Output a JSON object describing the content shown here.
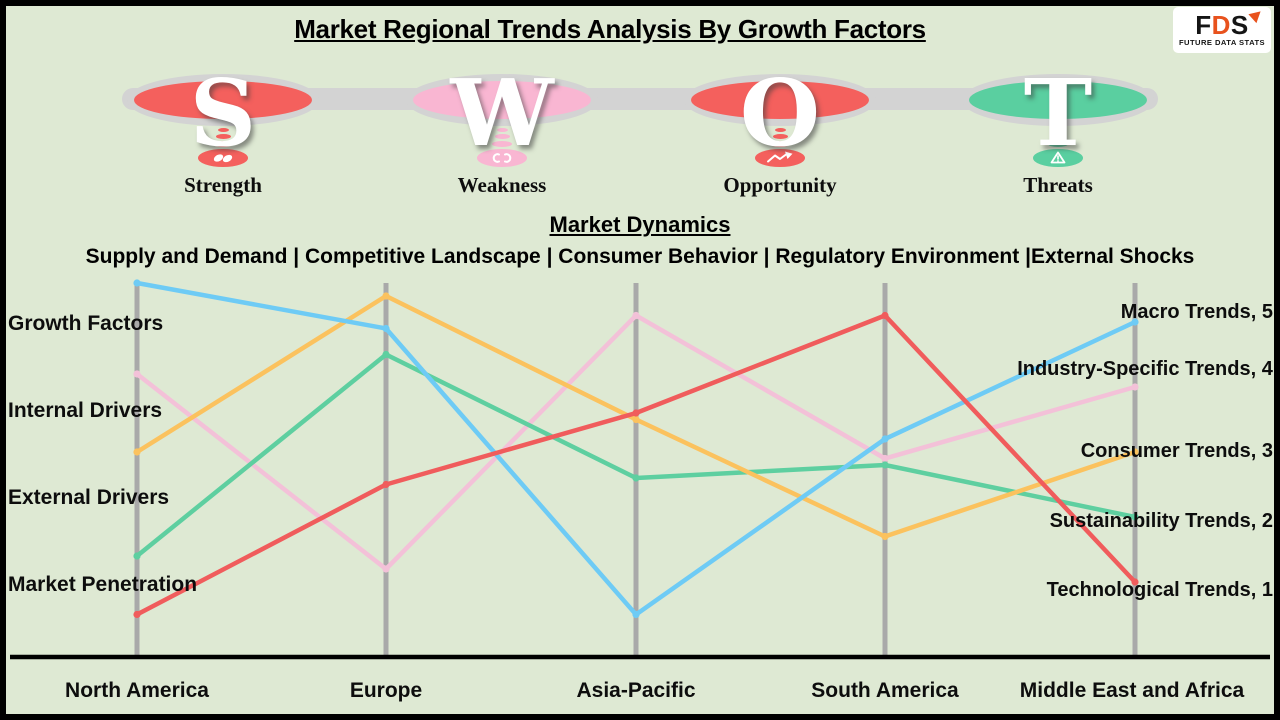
{
  "title": "Market Regional Trends Analysis By Growth Factors",
  "logo": {
    "letters": {
      "f": "F",
      "d": "D",
      "s": "S"
    },
    "subtext": "FUTURE DATA STATS",
    "accent_color": "#e8521d"
  },
  "swot": {
    "items": [
      {
        "letter": "S",
        "label": "Strength",
        "color": "#f4605d",
        "icon": "strength-icon"
      },
      {
        "letter": "W",
        "label": "Weakness",
        "color": "#f9b6d2",
        "icon": "weakness-icon"
      },
      {
        "letter": "O",
        "label": "Opportunity",
        "color": "#f4605d",
        "icon": "opportunity-icon"
      },
      {
        "letter": "T",
        "label": "Threats",
        "color": "#5acfa0",
        "icon": "threats-icon"
      }
    ]
  },
  "market_dynamics": {
    "heading": "Market Dynamics",
    "items_line": "Supply and Demand | Competitive Landscape | Consumer Behavior | Regulatory Environment |External Shocks"
  },
  "chart_data": {
    "type": "line",
    "categories": [
      "North America",
      "Europe",
      "Asia-Pacific",
      "South America",
      "Middle East and Africa"
    ],
    "left_axis_labels": [
      "Growth Factors",
      "Internal Drivers",
      "External Drivers",
      "Market Penetration"
    ],
    "value_range": [
      0,
      6
    ],
    "grid": false,
    "legend_position": "right-end-labels",
    "series": [
      {
        "name": "Macro Trends",
        "color": "#6ecbf5",
        "values": [
          5.6,
          4.9,
          0.5,
          3.2,
          5
        ],
        "end_label": "Macro Trends, 5"
      },
      {
        "name": "Industry-Specific Trends",
        "color": "#f3c1d8",
        "values": [
          4.2,
          1.2,
          5.1,
          2.9,
          4
        ],
        "end_label": "Industry-Specific Trends, 4"
      },
      {
        "name": "Consumer Trends",
        "color": "#fbc25e",
        "values": [
          3.0,
          5.4,
          3.5,
          1.7,
          3
        ],
        "end_label": "Consumer Trends, 3"
      },
      {
        "name": "Sustainability Trends",
        "color": "#5ecfa0",
        "values": [
          1.4,
          4.5,
          2.6,
          2.8,
          2
        ],
        "end_label": "Sustainability Trends, 2"
      },
      {
        "name": "Technological Trends",
        "color": "#f05c5c",
        "values": [
          0.5,
          2.5,
          3.6,
          5.1,
          1
        ],
        "end_label": "Technological Trends, 1"
      }
    ],
    "colors": {
      "background": "#dee9d3",
      "axis": "#a9a9a9",
      "baseline": "#000000",
      "connector_band": "#d3d3d3"
    }
  }
}
